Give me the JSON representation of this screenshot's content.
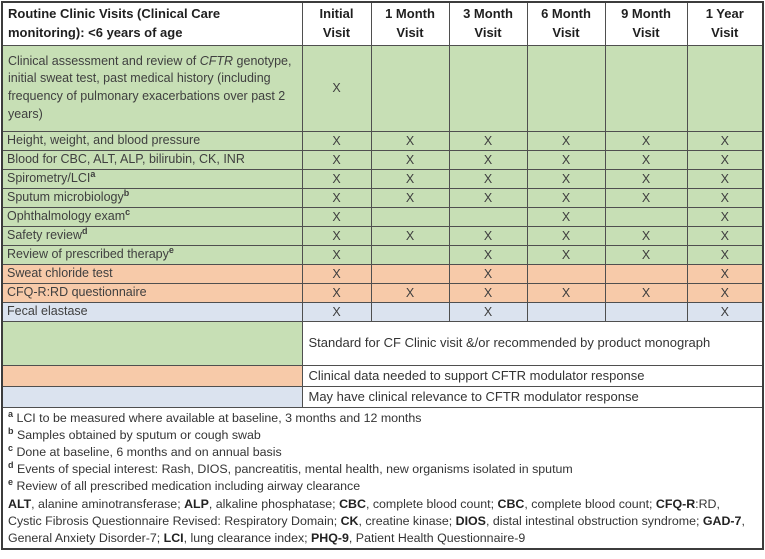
{
  "colors": {
    "green": "#c7dfb5",
    "orange": "#f7caa9",
    "blue": "#dbe3ef",
    "border": "#4f4f4f",
    "text": "#3f3f3f"
  },
  "table": {
    "corner_header": "Routine Clinic Visits (Clinical Care monitoring): <6 years of age",
    "visit_columns": [
      {
        "line1": "Initial",
        "line2": "Visit"
      },
      {
        "line1": "1 Month",
        "line2": "Visit"
      },
      {
        "line1": "3 Month",
        "line2": "Visit"
      },
      {
        "line1": "6 Month",
        "line2": "Visit"
      },
      {
        "line1": "9 Month",
        "line2": "Visit"
      },
      {
        "line1": "1 Year",
        "line2": "Visit"
      }
    ],
    "rows": [
      {
        "label_pre": "Clinical assessment and review of ",
        "label_italic": "CFTR",
        "label_post": " genotype, initial sweat test, past medical history (including frequency of pulmonary exacerbations over past 2 years)",
        "sup": "",
        "color": "green",
        "tall": true,
        "marks": [
          "X",
          "",
          "",
          "",
          "",
          ""
        ]
      },
      {
        "label_pre": "Height, weight, and blood pressure",
        "sup": "",
        "color": "green",
        "tall": false,
        "marks": [
          "X",
          "X",
          "X",
          "X",
          "X",
          "X"
        ]
      },
      {
        "label_pre": "Blood for CBC, ALT, ALP, bilirubin, CK, INR",
        "sup": "",
        "color": "green",
        "tall": false,
        "marks": [
          "X",
          "X",
          "X",
          "X",
          "X",
          "X"
        ]
      },
      {
        "label_pre": "Spirometry/LCI",
        "sup": "a",
        "color": "green",
        "tall": false,
        "marks": [
          "X",
          "X",
          "X",
          "X",
          "X",
          "X"
        ]
      },
      {
        "label_pre": "Sputum microbiology",
        "sup": "b",
        "color": "green",
        "tall": false,
        "marks": [
          "X",
          "X",
          "X",
          "X",
          "X",
          "X"
        ]
      },
      {
        "label_pre": "Ophthalmology exam",
        "sup": "c",
        "color": "green",
        "tall": false,
        "marks": [
          "X",
          "",
          "",
          "X",
          "",
          "X"
        ]
      },
      {
        "label_pre": "Safety review",
        "sup": "d",
        "color": "green",
        "tall": false,
        "marks": [
          "X",
          "X",
          "X",
          "X",
          "X",
          "X"
        ]
      },
      {
        "label_pre": "Review of prescribed therapy",
        "sup": "e",
        "color": "green",
        "tall": false,
        "marks": [
          "X",
          "",
          "X",
          "X",
          "X",
          "X"
        ]
      },
      {
        "label_pre": "Sweat chloride test",
        "sup": "",
        "color": "orange",
        "tall": false,
        "marks": [
          "X",
          "",
          "X",
          "",
          "",
          "X"
        ]
      },
      {
        "label_pre": "CFQ-R:RD questionnaire",
        "sup": "",
        "color": "orange",
        "tall": false,
        "marks": [
          "X",
          "X",
          "X",
          "X",
          "X",
          "X"
        ]
      },
      {
        "label_pre": "Fecal elastase",
        "sup": "",
        "color": "blue",
        "tall": false,
        "marks": [
          "X",
          "",
          "X",
          "",
          "",
          "X"
        ]
      }
    ]
  },
  "legend": [
    {
      "color": "green",
      "tall": true,
      "text": "Standard for CF Clinic visit &/or recommended by product monograph"
    },
    {
      "color": "orange",
      "tall": false,
      "text": "Clinical data needed to support CFTR modulator response"
    },
    {
      "color": "blue",
      "tall": false,
      "text": "May have clinical relevance to CFTR modulator response"
    }
  ],
  "footnotes": [
    {
      "sup": "a",
      "text": "LCI to be measured where available at baseline, 3 months and 12 months"
    },
    {
      "sup": "b",
      "text": "Samples obtained by sputum or cough swab"
    },
    {
      "sup": "c",
      "text": "Done at baseline, 6 months and on annual basis"
    },
    {
      "sup": "d",
      "text": "Events of special interest: Rash, DIOS, pancreatitis, mental health, new organisms isolated in sputum"
    },
    {
      "sup": "e",
      "text": "Review of all prescribed medication including airway clearance"
    }
  ],
  "abbreviations": [
    {
      "term": "ALT",
      "suffix": "",
      "desc": "alanine aminotransferase"
    },
    {
      "term": "ALP",
      "suffix": "",
      "desc": "alkaline phosphatase"
    },
    {
      "term": "CBC",
      "suffix": "",
      "desc": "complete blood count"
    },
    {
      "term": "CBC",
      "suffix": "",
      "desc": "complete blood count"
    },
    {
      "term": "CFQ-R",
      "suffix": ":RD",
      "desc": "Cystic Fibrosis Questionnaire Revised: Respiratory Domain"
    },
    {
      "term": "CK",
      "suffix": "",
      "desc": "creatine kinase"
    },
    {
      "term": "DIOS",
      "suffix": "",
      "desc": "distal intestinal obstruction syndrome"
    },
    {
      "term": "GAD-7",
      "suffix": "",
      "desc": "General Anxiety Disorder-7"
    },
    {
      "term": "LCI",
      "suffix": "",
      "desc": "lung clearance index"
    },
    {
      "term": "PHQ-9",
      "suffix": "",
      "desc": "Patient Health Questionnaire-9"
    }
  ]
}
